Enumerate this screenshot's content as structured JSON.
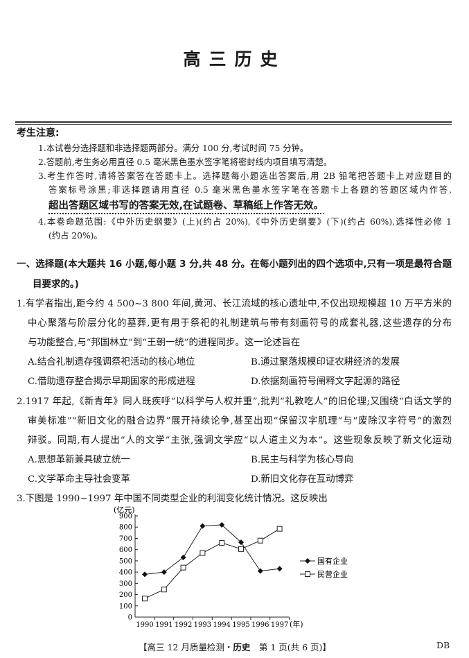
{
  "title": "高三历史",
  "notice": {
    "heading": "考生注意:",
    "lines": [
      "1.本试卷分选择题和非选择题两部分。满分 100 分,考试时间 75 分钟。",
      "2.答题前,考生务必用直径 0.5 毫米黑色墨水签字笔将密封线内项目填写清楚。",
      "3.考生作答时,请将答案答在答题卡上。选择题每小题选出答案后,用 2B 铅笔把答题卡上对应题目的",
      "答案标号涂黑;非选择题请用直径 0.5 毫米黑色墨水签字笔在答题卡上各题的答题区域内作答,",
      "4.本卷命题范围:《中外历史纲要》(上)(约占 20%),《中外历史纲要》(下)(约占 60%),选择性必修 1",
      "(约占 20%)。"
    ],
    "emphasis": "超出答题区域书写的答案无效,在试题卷、草稿纸上作答无效。"
  },
  "section": {
    "lines": [
      "一、选择题(本大题共 16 小题,每小题 3 分,共 48 分。在每小题列出的四个选项中,只有一项是最符合题",
      "目要求的。)"
    ]
  },
  "questions": [
    {
      "lines": [
        "1.有学者指出,距今约 4 500~3 800 年间,黄河、长江流域的核心遗址中,不仅出现规模超 10 万平方米的",
        "中心聚落与阶层分化的墓葬,更有用于祭祀的礼制建筑与带有刻画符号的成套礼器,这些遗存的分布",
        "与功能整合,与“邦国林立”到“王朝一统”的进程同步。这一论述旨在"
      ],
      "options": [
        "A.结合礼制遗存强调祭祀活动的核心地位",
        "B.通过聚落规模印证农耕经济的发展",
        "C.借助遗存整合揭示早期国家的形成进程",
        "D.依据刻画符号阐释文字起源的路径"
      ]
    },
    {
      "lines": [
        "2.1917 年起,《新青年》同人既疾呼“以科学与人权并重”,批判“礼教吃人”的旧伦理;又围绕“白话文学的",
        "审美标准”“新旧文化的融合边界”展开持续论争,甚至出现“保留汉字肌理”与“废除汉字符号”的激烈",
        "辩驳。同期,有人提出“人的文学”主张,强调文学应“以人道主义为本”。这些现象反映了新文化运动"
      ],
      "options": [
        "A.思想革新兼具破立统一",
        "B.民主与科学为核心导向",
        "C.文学革命主导社会变革",
        "D.新旧文化存在互动博弈"
      ]
    },
    {
      "lines": [
        "3.下图是 1990~1997 年中国不同类型企业的利润变化统计情况。这反映出"
      ]
    }
  ],
  "chart_data": {
    "type": "line",
    "ylabel": "(亿元)",
    "xlabel": "(年)",
    "categories": [
      "1990",
      "1991",
      "1992",
      "1993",
      "1994",
      "1995",
      "1996",
      "1997"
    ],
    "ylim": [
      0,
      900
    ],
    "yticks": [
      0,
      100,
      200,
      300,
      400,
      500,
      600,
      700,
      800,
      900
    ],
    "grid": false,
    "legend": "right",
    "series": [
      {
        "name": "国有企业",
        "marker": "filled-diamond",
        "values": [
          380,
          400,
          530,
          810,
          820,
          665,
          410,
          430
        ]
      },
      {
        "name": "民营企业",
        "marker": "open-square",
        "values": [
          165,
          245,
          440,
          570,
          660,
          605,
          680,
          785
        ]
      }
    ]
  },
  "footer": {
    "text_pre": "【高三 12 月质量检测・",
    "subject": "历史",
    "text_post": "　第 1 页(共 6 页)】",
    "code": "DB"
  }
}
